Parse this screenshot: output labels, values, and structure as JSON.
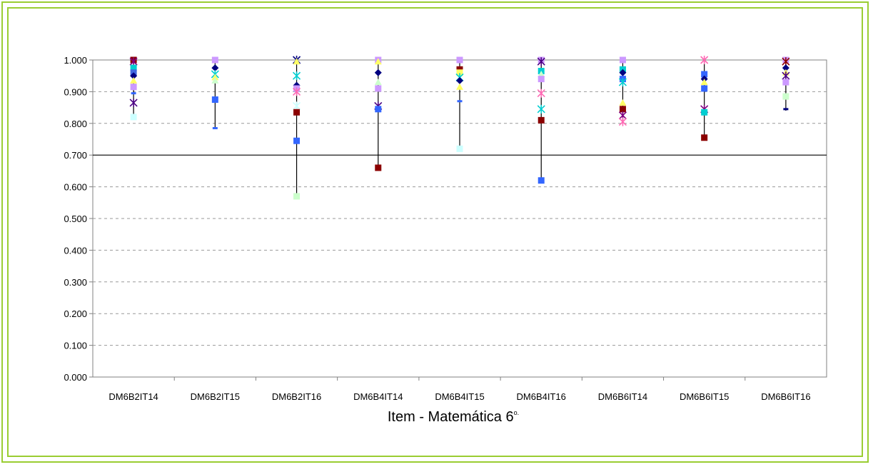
{
  "chart_data": {
    "type": "scatter",
    "title": "",
    "xlabel": "Item - Matemática 6",
    "xlabel_superscript": "o.",
    "ylabel": "",
    "ylim": [
      0,
      1
    ],
    "yticks": [
      "0.000",
      "0.100",
      "0.200",
      "0.300",
      "0.400",
      "0.500",
      "0.600",
      "0.700",
      "0.800",
      "0.900",
      "1.000"
    ],
    "reference_line": 0.7,
    "grid": true,
    "categories": [
      "DM6B2IT14",
      "DM6B2IT15",
      "DM6B2IT16",
      "DM6B4IT14",
      "DM6B4IT15",
      "DM6B4IT16",
      "DM6B6IT14",
      "DM6B6IT15",
      "DM6B6IT16"
    ],
    "ranges": [
      {
        "min": 0.82,
        "max": 1.0
      },
      {
        "min": 0.785,
        "max": 1.0
      },
      {
        "min": 0.57,
        "max": 1.0
      },
      {
        "min": 0.66,
        "max": 1.0
      },
      {
        "min": 0.72,
        "max": 1.0
      },
      {
        "min": 0.62,
        "max": 1.0
      },
      {
        "min": 0.8,
        "max": 1.0
      },
      {
        "min": 0.75,
        "max": 1.0
      },
      {
        "min": 0.84,
        "max": 1.0
      }
    ],
    "points": [
      [
        {
          "y": 1.0,
          "marker": "square",
          "color": "#8b0000"
        },
        {
          "y": 0.995,
          "marker": "x",
          "color": "#800080"
        },
        {
          "y": 0.975,
          "marker": "square",
          "color": "#00ced1"
        },
        {
          "y": 0.96,
          "marker": "square",
          "color": "#4169e1"
        },
        {
          "y": 0.95,
          "marker": "diamond",
          "color": "#000080"
        },
        {
          "y": 0.935,
          "marker": "triangle",
          "color": "#ffff66"
        },
        {
          "y": 0.915,
          "marker": "square",
          "color": "#cc99ff"
        },
        {
          "y": 0.895,
          "marker": "dash",
          "color": "#3366ff"
        },
        {
          "y": 0.865,
          "marker": "x",
          "color": "#4b0082"
        },
        {
          "y": 0.82,
          "marker": "square",
          "color": "#ccffff"
        }
      ],
      [
        {
          "y": 1.0,
          "marker": "square",
          "color": "#cc99ff"
        },
        {
          "y": 0.975,
          "marker": "diamond",
          "color": "#000080"
        },
        {
          "y": 0.955,
          "marker": "x",
          "color": "#00ced1"
        },
        {
          "y": 0.945,
          "marker": "triangle",
          "color": "#ffff66"
        },
        {
          "y": 0.935,
          "marker": "triangle",
          "color": "#ccffcc"
        },
        {
          "y": 0.875,
          "marker": "square",
          "color": "#3366ff"
        },
        {
          "y": 0.785,
          "marker": "dash",
          "color": "#3366ff"
        }
      ],
      [
        {
          "y": 1.0,
          "marker": "x",
          "color": "#000080"
        },
        {
          "y": 0.995,
          "marker": "triangle",
          "color": "#ffff66"
        },
        {
          "y": 0.95,
          "marker": "x",
          "color": "#00ced1"
        },
        {
          "y": 0.92,
          "marker": "diamond",
          "color": "#000080"
        },
        {
          "y": 0.91,
          "marker": "square",
          "color": "#cc99ff"
        },
        {
          "y": 0.9,
          "marker": "x",
          "color": "#ff69b4"
        },
        {
          "y": 0.855,
          "marker": "x",
          "color": "#ccffff"
        },
        {
          "y": 0.835,
          "marker": "square",
          "color": "#8b0000"
        },
        {
          "y": 0.745,
          "marker": "square",
          "color": "#3366ff"
        },
        {
          "y": 0.57,
          "marker": "square",
          "color": "#ccffcc"
        }
      ],
      [
        {
          "y": 1.0,
          "marker": "square",
          "color": "#cc99ff"
        },
        {
          "y": 0.995,
          "marker": "triangle",
          "color": "#ffff66"
        },
        {
          "y": 0.96,
          "marker": "diamond",
          "color": "#000080"
        },
        {
          "y": 0.93,
          "marker": "triangle",
          "color": "#ccffcc"
        },
        {
          "y": 0.91,
          "marker": "square",
          "color": "#cc99ff"
        },
        {
          "y": 0.855,
          "marker": "x",
          "color": "#4b0082"
        },
        {
          "y": 0.845,
          "marker": "square",
          "color": "#3366ff"
        },
        {
          "y": 0.66,
          "marker": "square",
          "color": "#8b0000"
        }
      ],
      [
        {
          "y": 1.0,
          "marker": "square",
          "color": "#cc99ff"
        },
        {
          "y": 0.97,
          "marker": "square",
          "color": "#8b0000"
        },
        {
          "y": 0.96,
          "marker": "square",
          "color": "#ffff66"
        },
        {
          "y": 0.945,
          "marker": "x",
          "color": "#00ced1"
        },
        {
          "y": 0.935,
          "marker": "diamond",
          "color": "#000080"
        },
        {
          "y": 0.915,
          "marker": "triangle",
          "color": "#ffff66"
        },
        {
          "y": 0.87,
          "marker": "dash",
          "color": "#3366ff"
        },
        {
          "y": 0.72,
          "marker": "square",
          "color": "#ccffff"
        }
      ],
      [
        {
          "y": 1.0,
          "marker": "square",
          "color": "#cc99ff"
        },
        {
          "y": 0.995,
          "marker": "x",
          "color": "#4b0082"
        },
        {
          "y": 0.965,
          "marker": "square",
          "color": "#00ced1"
        },
        {
          "y": 0.955,
          "marker": "triangle",
          "color": "#ccffcc"
        },
        {
          "y": 0.94,
          "marker": "square",
          "color": "#cc99ff"
        },
        {
          "y": 0.895,
          "marker": "x",
          "color": "#ff69b4"
        },
        {
          "y": 0.845,
          "marker": "x",
          "color": "#00ced1"
        },
        {
          "y": 0.81,
          "marker": "square",
          "color": "#8b0000"
        },
        {
          "y": 0.62,
          "marker": "square",
          "color": "#3366ff"
        }
      ],
      [
        {
          "y": 1.0,
          "marker": "square",
          "color": "#cc99ff"
        },
        {
          "y": 0.97,
          "marker": "square",
          "color": "#00ced1"
        },
        {
          "y": 0.96,
          "marker": "diamond",
          "color": "#000080"
        },
        {
          "y": 0.94,
          "marker": "square",
          "color": "#3366ff"
        },
        {
          "y": 0.93,
          "marker": "x",
          "color": "#00ced1"
        },
        {
          "y": 0.865,
          "marker": "triangle",
          "color": "#ffff66"
        },
        {
          "y": 0.845,
          "marker": "square",
          "color": "#8b0000"
        },
        {
          "y": 0.825,
          "marker": "x",
          "color": "#800080"
        },
        {
          "y": 0.805,
          "marker": "x",
          "color": "#ff69b4"
        }
      ],
      [
        {
          "y": 1.0,
          "marker": "x",
          "color": "#ff69b4"
        },
        {
          "y": 0.955,
          "marker": "square",
          "color": "#3366ff"
        },
        {
          "y": 0.94,
          "marker": "diamond",
          "color": "#000080"
        },
        {
          "y": 0.93,
          "marker": "triangle",
          "color": "#ffff66"
        },
        {
          "y": 0.91,
          "marker": "square",
          "color": "#3366ff"
        },
        {
          "y": 0.845,
          "marker": "x",
          "color": "#800080"
        },
        {
          "y": 0.835,
          "marker": "square",
          "color": "#00ced1"
        },
        {
          "y": 0.755,
          "marker": "square",
          "color": "#8b0000"
        }
      ],
      [
        {
          "y": 1.0,
          "marker": "square",
          "color": "#cc99ff"
        },
        {
          "y": 0.995,
          "marker": "x",
          "color": "#8b0000"
        },
        {
          "y": 0.975,
          "marker": "diamond",
          "color": "#000080"
        },
        {
          "y": 0.96,
          "marker": "triangle",
          "color": "#ffff66"
        },
        {
          "y": 0.95,
          "marker": "x",
          "color": "#4b0082"
        },
        {
          "y": 0.93,
          "marker": "square",
          "color": "#cc99ff"
        },
        {
          "y": 0.885,
          "marker": "square",
          "color": "#ccffcc"
        },
        {
          "y": 0.845,
          "marker": "dash",
          "color": "#000080"
        }
      ]
    ]
  },
  "colors": {
    "frame": "#9acd32",
    "axis": "#808080",
    "gridline": "#999999",
    "reference_line": "#000000"
  }
}
